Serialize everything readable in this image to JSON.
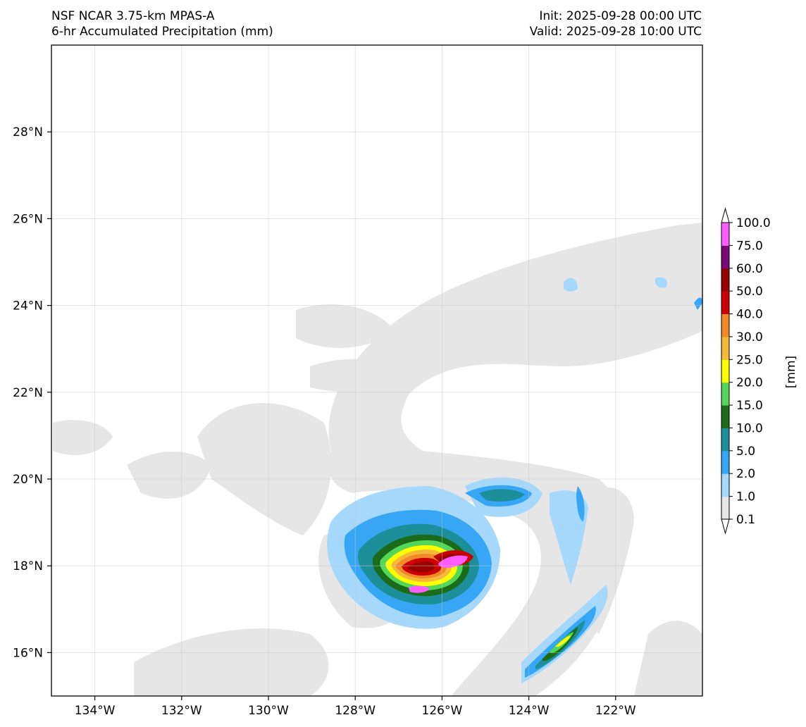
{
  "header": {
    "model": "NSF NCAR 3.75-km MPAS-A",
    "product": "6-hr Accumulated Precipitation (mm)",
    "init": "Init: 2025-09-28 00:00 UTC",
    "valid": "Valid: 2025-09-28 10:00 UTC"
  },
  "map": {
    "lon_range": [
      -135.0,
      -120.0
    ],
    "lat_range": [
      15.0,
      30.0
    ],
    "gridlines": true,
    "lon_ticks": [
      {
        "value": -134,
        "label": "134°W"
      },
      {
        "value": -132,
        "label": "132°W"
      },
      {
        "value": -130,
        "label": "130°W"
      },
      {
        "value": -128,
        "label": "128°W"
      },
      {
        "value": -126,
        "label": "126°W"
      },
      {
        "value": -124,
        "label": "124°W"
      },
      {
        "value": -122,
        "label": "122°W"
      }
    ],
    "lat_ticks": [
      {
        "value": 16,
        "label": "16°N"
      },
      {
        "value": 18,
        "label": "18°N"
      },
      {
        "value": 20,
        "label": "20°N"
      },
      {
        "value": 22,
        "label": "22°N"
      },
      {
        "value": 24,
        "label": "24°N"
      },
      {
        "value": 26,
        "label": "26°N"
      },
      {
        "value": 28,
        "label": "28°N"
      }
    ],
    "storm_center": {
      "lon": -126.2,
      "lat": 18.1
    }
  },
  "colorbar": {
    "unit_label": "[mm]",
    "levels": [
      "0.1",
      "1.0",
      "2.0",
      "5.0",
      "10.0",
      "15.0",
      "20.0",
      "25.0",
      "30.0",
      "40.0",
      "50.0",
      "60.0",
      "75.0",
      "100.0"
    ],
    "colors": [
      "#e6e6e6",
      "#a6d8fb",
      "#36a6f5",
      "#1d8f9b",
      "#1a6b1a",
      "#53d65a",
      "#ffff00",
      "#f5b83a",
      "#f08a29",
      "#cc0000",
      "#990000",
      "#7a0a7a",
      "#ff5cff"
    ]
  }
}
